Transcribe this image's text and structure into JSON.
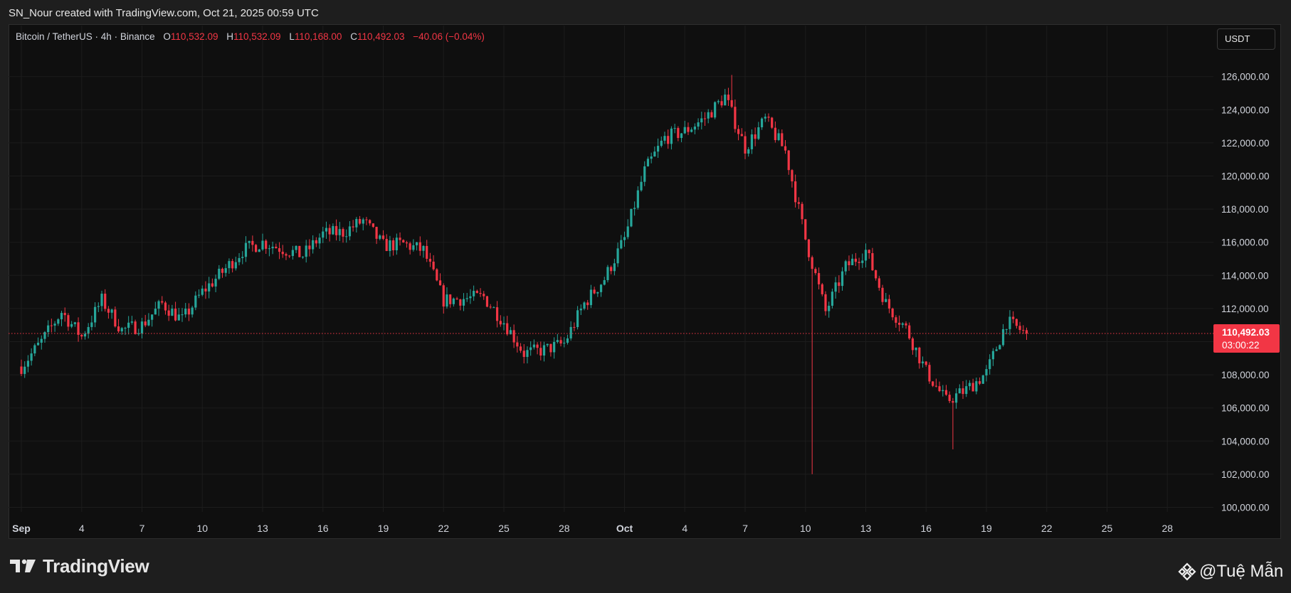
{
  "header": {
    "attribution": "SN_Nour created with TradingView.com, Oct 21, 2025 00:59 UTC"
  },
  "legend": {
    "symbol": "Bitcoin / TetherUS · 4h · Binance",
    "open_label": "O",
    "open": "110,532.09",
    "high_label": "H",
    "high": "110,532.09",
    "low_label": "L",
    "low": "110,168.00",
    "close_label": "C",
    "close": "110,492.03",
    "change": "−40.06 (−0.04%)"
  },
  "currency_button": "USDT",
  "last_price": {
    "price": "110,492.03",
    "countdown": "03:00:22"
  },
  "brand": {
    "name": "TradingView",
    "icon": "tradingview-logo-icon"
  },
  "watermark": {
    "text": "@Tuệ Mẫn",
    "icon": "binance-diamond-icon"
  },
  "colors": {
    "up": "#26a69a",
    "down": "#f23645",
    "background": "#0f0f0f",
    "grid": "#1c1c1c",
    "axis_text": "#d1d4dc"
  },
  "chart_data": {
    "type": "candlestick",
    "symbol": "BTC/USDT",
    "interval": "4h",
    "x_axis": {
      "ticks": [
        "Sep",
        "4",
        "7",
        "10",
        "13",
        "16",
        "19",
        "22",
        "25",
        "28",
        "Oct",
        "4",
        "7",
        "10",
        "13",
        "16",
        "19",
        "22",
        "25",
        "28"
      ],
      "bold_ticks": [
        "Sep",
        "Oct"
      ]
    },
    "y_axis": {
      "ticks": [
        100000,
        102000,
        104000,
        106000,
        108000,
        110000,
        112000,
        114000,
        116000,
        118000,
        120000,
        122000,
        124000,
        126000
      ],
      "tick_labels": [
        "100,000.00",
        "102,000.00",
        "104,000.00",
        "106,000.00",
        "108,000.00",
        "110,000.00",
        "112,000.00",
        "114,000.00",
        "116,000.00",
        "118,000.00",
        "120,000.00",
        "122,000.00",
        "124,000.00",
        "126,000.00"
      ],
      "range": [
        99500,
        127000
      ]
    },
    "grid": true,
    "last_price_line": 110492.03,
    "anchors": [
      [
        "2025-09-01",
        108500
      ],
      [
        "2025-09-02",
        110000
      ],
      [
        "2025-09-03",
        111800
      ],
      [
        "2025-09-04",
        110300
      ],
      [
        "2025-09-05",
        112500
      ],
      [
        "2025-09-06",
        110700
      ],
      [
        "2025-09-07",
        111000
      ],
      [
        "2025-09-08",
        112300
      ],
      [
        "2025-09-09",
        111300
      ],
      [
        "2025-09-10",
        113000
      ],
      [
        "2025-09-11",
        114200
      ],
      [
        "2025-09-12",
        115500
      ],
      [
        "2025-09-13",
        116000
      ],
      [
        "2025-09-14",
        115600
      ],
      [
        "2025-09-15",
        115200
      ],
      [
        "2025-09-16",
        116500
      ],
      [
        "2025-09-17",
        116600
      ],
      [
        "2025-09-18",
        117300
      ],
      [
        "2025-09-19",
        115800
      ],
      [
        "2025-09-20",
        115900
      ],
      [
        "2025-09-21",
        115500
      ],
      [
        "2025-09-22",
        112500
      ],
      [
        "2025-09-23",
        112600
      ],
      [
        "2025-09-24",
        112700
      ],
      [
        "2025-09-25",
        111200
      ],
      [
        "2025-09-26",
        109300
      ],
      [
        "2025-09-27",
        109500
      ],
      [
        "2025-09-28",
        109900
      ],
      [
        "2025-09-29",
        112300
      ],
      [
        "2025-09-30",
        113800
      ],
      [
        "2025-10-01",
        116200
      ],
      [
        "2025-10-02",
        120300
      ],
      [
        "2025-10-03",
        122300
      ],
      [
        "2025-10-04",
        122700
      ],
      [
        "2025-10-05",
        123500
      ],
      [
        "2025-10-06",
        124800
      ],
      [
        "2025-10-07",
        121700
      ],
      [
        "2025-10-08",
        123400
      ],
      [
        "2025-10-09",
        121500
      ],
      [
        "2025-10-10",
        116200
      ],
      [
        "2025-10-11",
        111800
      ],
      [
        "2025-10-12",
        114500
      ],
      [
        "2025-10-13",
        115500
      ],
      [
        "2025-10-14",
        112300
      ],
      [
        "2025-10-15",
        110800
      ],
      [
        "2025-10-16",
        108200
      ],
      [
        "2025-10-17",
        106400
      ],
      [
        "2025-10-18",
        107100
      ],
      [
        "2025-10-19",
        108100
      ],
      [
        "2025-10-20",
        111200
      ],
      [
        "2025-10-21",
        110492
      ]
    ],
    "notable_wicks": [
      {
        "date": "2025-10-06",
        "high": 126100
      },
      {
        "date": "2025-10-10",
        "low": 102000
      },
      {
        "date": "2025-10-17",
        "low": 103500
      }
    ]
  }
}
